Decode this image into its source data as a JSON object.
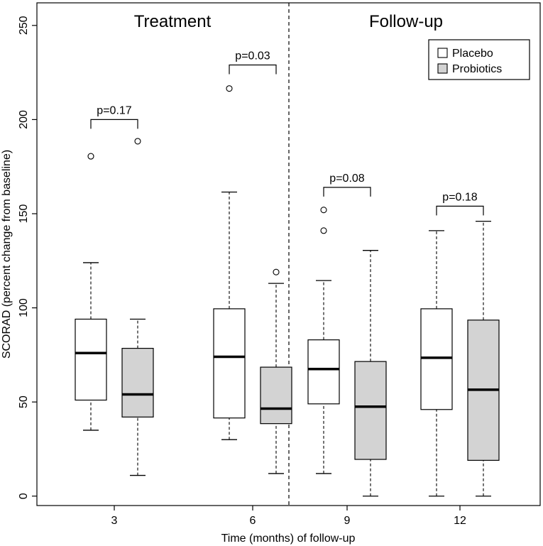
{
  "chart_data": {
    "type": "boxplot",
    "title": "",
    "xlabel": "Time (months) of follow-up",
    "ylabel": "SCORAD (percent change from baseline)",
    "ylim": [
      -5,
      262
    ],
    "yticks": [
      0,
      50,
      100,
      150,
      200,
      250
    ],
    "categories": [
      "3",
      "6",
      "9",
      "12"
    ],
    "panels": [
      {
        "label": "Treatment",
        "categories": [
          "3",
          "6"
        ]
      },
      {
        "label": "Follow-up",
        "categories": [
          "9",
          "12"
        ]
      }
    ],
    "legend": {
      "position": "top-right",
      "entries": [
        {
          "name": "Placebo",
          "fill": "#ffffff"
        },
        {
          "name": "Probiotics",
          "fill": "#d3d3d3"
        }
      ]
    },
    "series": [
      {
        "name": "Placebo",
        "fill": "#ffffff",
        "boxes": [
          {
            "category": "3",
            "min": 35,
            "q1": 51,
            "median": 76,
            "q3": 94,
            "max": 124,
            "outliers": [
              180.5
            ]
          },
          {
            "category": "6",
            "min": 30,
            "q1": 41.5,
            "median": 74,
            "q3": 99.5,
            "max": 161.5,
            "outliers": [
              216.5
            ]
          },
          {
            "category": "9",
            "min": 12,
            "q1": 49,
            "median": 67.5,
            "q3": 83,
            "max": 114.5,
            "outliers": [
              141,
              152
            ]
          },
          {
            "category": "12",
            "min": 0,
            "q1": 46,
            "median": 73.5,
            "q3": 99.5,
            "max": 141,
            "outliers": []
          }
        ]
      },
      {
        "name": "Probiotics",
        "fill": "#d3d3d3",
        "boxes": [
          {
            "category": "3",
            "min": 11,
            "q1": 42,
            "median": 54,
            "q3": 78.5,
            "max": 94,
            "outliers": [
              188.5
            ]
          },
          {
            "category": "6",
            "min": 12,
            "q1": 38.5,
            "median": 46.5,
            "q3": 68.5,
            "max": 113,
            "outliers": [
              119
            ]
          },
          {
            "category": "9",
            "min": 0,
            "q1": 19.5,
            "median": 47.5,
            "q3": 71.5,
            "max": 130.5,
            "outliers": []
          },
          {
            "category": "12",
            "min": 0,
            "q1": 19,
            "median": 56.5,
            "q3": 93.5,
            "max": 146,
            "outliers": []
          }
        ]
      }
    ],
    "annotations": [
      {
        "category": "3",
        "text": "p=0.17",
        "bracket_y": 200
      },
      {
        "category": "6",
        "text": "p=0.03",
        "bracket_y": 229
      },
      {
        "category": "9",
        "text": "p=0.08",
        "bracket_y": 164
      },
      {
        "category": "12",
        "text": "p=0.18",
        "bracket_y": 154
      }
    ],
    "divider": {
      "style": "dashed",
      "between": [
        "6",
        "9"
      ]
    }
  }
}
